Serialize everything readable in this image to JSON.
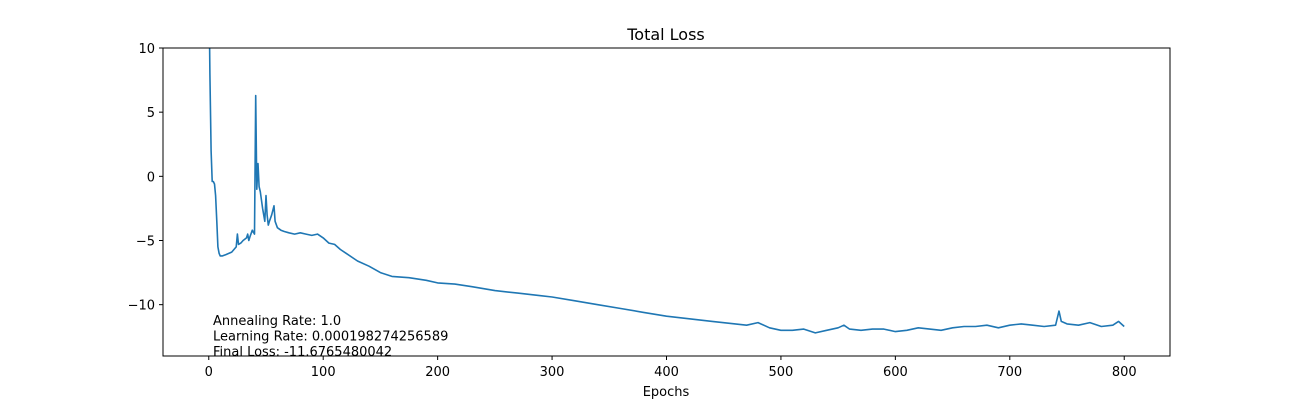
{
  "chart_data": {
    "type": "line",
    "title": "Total Loss",
    "xlabel": "Epochs",
    "ylabel": "",
    "xlim": [
      -40,
      840
    ],
    "ylim": [
      -14,
      10
    ],
    "xticks": [
      0,
      100,
      200,
      300,
      400,
      500,
      600,
      700,
      800
    ],
    "yticks": [
      -10,
      -5,
      0,
      5,
      10
    ],
    "xtick_labels": [
      "0",
      "100",
      "200",
      "300",
      "400",
      "500",
      "600",
      "700",
      "800"
    ],
    "ytick_labels": [
      "−10",
      "−5",
      "0",
      "5",
      "10"
    ],
    "grid": false,
    "series": [
      {
        "color": "#1f77b4",
        "x": [
          0,
          1,
          2,
          3,
          4,
          5,
          6,
          7,
          8,
          9,
          10,
          12,
          15,
          20,
          24,
          25,
          26,
          28,
          30,
          33,
          34,
          35,
          36,
          38,
          40,
          41,
          42,
          43,
          44,
          45,
          47,
          49,
          50,
          51,
          52,
          53,
          55,
          57,
          58,
          60,
          63,
          66,
          70,
          75,
          80,
          85,
          90,
          95,
          100,
          105,
          110,
          115,
          120,
          130,
          140,
          150,
          160,
          175,
          190,
          200,
          215,
          230,
          250,
          270,
          290,
          300,
          320,
          340,
          360,
          380,
          400,
          420,
          440,
          460,
          470,
          480,
          490,
          500,
          510,
          520,
          530,
          540,
          550,
          555,
          560,
          570,
          580,
          590,
          600,
          610,
          620,
          630,
          640,
          650,
          660,
          670,
          680,
          690,
          700,
          710,
          720,
          730,
          740,
          743,
          745,
          750,
          760,
          770,
          780,
          790,
          795,
          800
        ],
        "y": [
          16,
          8,
          2,
          -0.4,
          -0.4,
          -0.6,
          -1.5,
          -3.5,
          -5.5,
          -6.0,
          -6.2,
          -6.2,
          -6.1,
          -5.9,
          -5.5,
          -4.5,
          -5.3,
          -5.2,
          -5.0,
          -4.8,
          -4.5,
          -5.0,
          -4.7,
          -4.2,
          -4.5,
          6.3,
          -1.0,
          1.0,
          -0.8,
          -1.2,
          -2.5,
          -3.5,
          -1.5,
          -3.0,
          -3.8,
          -3.5,
          -3.0,
          -2.3,
          -3.5,
          -4.0,
          -4.2,
          -4.3,
          -4.4,
          -4.5,
          -4.4,
          -4.5,
          -4.6,
          -4.5,
          -4.8,
          -5.2,
          -5.3,
          -5.7,
          -6.0,
          -6.6,
          -7.0,
          -7.5,
          -7.8,
          -7.9,
          -8.1,
          -8.3,
          -8.4,
          -8.6,
          -8.9,
          -9.1,
          -9.3,
          -9.4,
          -9.7,
          -10.0,
          -10.3,
          -10.6,
          -10.9,
          -11.1,
          -11.3,
          -11.5,
          -11.6,
          -11.4,
          -11.8,
          -12.0,
          -12.0,
          -11.9,
          -12.2,
          -12.0,
          -11.8,
          -11.6,
          -11.9,
          -12.0,
          -11.9,
          -11.9,
          -12.1,
          -12.0,
          -11.8,
          -11.9,
          -12.0,
          -11.8,
          -11.7,
          -11.7,
          -11.6,
          -11.8,
          -11.6,
          -11.5,
          -11.6,
          -11.7,
          -11.6,
          -10.5,
          -11.3,
          -11.5,
          -11.6,
          -11.4,
          -11.7,
          -11.6,
          -11.3,
          -11.7
        ]
      }
    ],
    "annotations": [
      "Annealing Rate: 1.0",
      "Learning Rate: 0.000198274256589",
      "Final Loss: -11.6765480042"
    ]
  }
}
